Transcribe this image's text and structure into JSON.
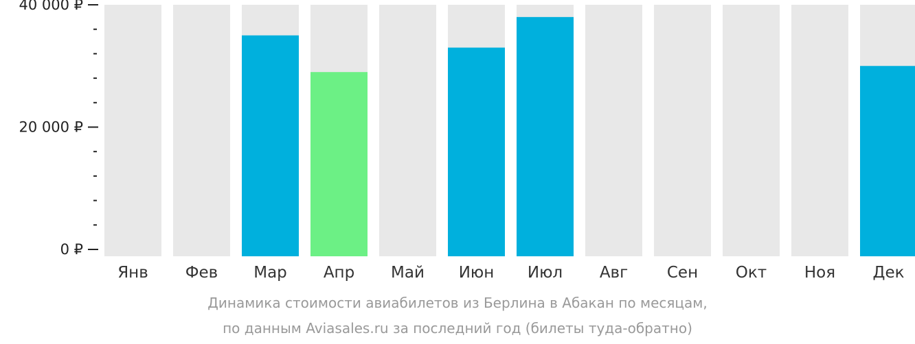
{
  "chart_data": {
    "type": "bar",
    "categories": [
      "Янв",
      "Фев",
      "Мар",
      "Апр",
      "Май",
      "Июн",
      "Июл",
      "Авг",
      "Сен",
      "Окт",
      "Ноя",
      "Дек"
    ],
    "values": [
      null,
      null,
      35000,
      29000,
      null,
      33000,
      38000,
      null,
      null,
      null,
      null,
      30000
    ],
    "highlight_index": 3,
    "ylim": [
      0,
      40000
    ],
    "yticks": [
      {
        "value": 0,
        "label": "0 ₽"
      },
      {
        "value": 20000,
        "label": "20 000 ₽"
      },
      {
        "value": 40000,
        "label": "40 000 ₽"
      }
    ],
    "minor_ytick_step": 4000,
    "colors": {
      "bar": "#00b0dd",
      "highlight": "#6cf085",
      "empty": "#e8e8e8",
      "axis": "#222222"
    },
    "caption_lines": [
      "Динамика стоимости авиабилетов из Берлина в Абакан по месяцам,",
      "по данным Aviasales.ru за последний год (билеты туда-обратно)"
    ]
  }
}
